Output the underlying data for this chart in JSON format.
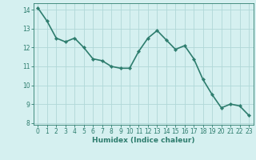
{
  "x": [
    0,
    1,
    2,
    3,
    4,
    5,
    6,
    7,
    8,
    9,
    10,
    11,
    12,
    13,
    14,
    15,
    16,
    17,
    18,
    19,
    20,
    21,
    22,
    23
  ],
  "y": [
    14.1,
    13.4,
    12.5,
    12.3,
    12.5,
    12.0,
    11.4,
    11.3,
    11.0,
    10.9,
    10.9,
    11.8,
    12.5,
    12.9,
    12.4,
    11.9,
    12.1,
    11.4,
    10.3,
    9.5,
    8.8,
    9.0,
    8.9,
    8.4
  ],
  "line_color": "#2e7d6e",
  "marker": "D",
  "marker_size": 2.2,
  "bg_color": "#d5f0f0",
  "grid_color": "#b0d8d8",
  "xlabel": "Humidex (Indice chaleur)",
  "ylim": [
    7.9,
    14.35
  ],
  "xlim": [
    -0.5,
    23.5
  ],
  "yticks": [
    8,
    9,
    10,
    11,
    12,
    13,
    14
  ],
  "xticks": [
    0,
    1,
    2,
    3,
    4,
    5,
    6,
    7,
    8,
    9,
    10,
    11,
    12,
    13,
    14,
    15,
    16,
    17,
    18,
    19,
    20,
    21,
    22,
    23
  ],
  "tick_color": "#2e7d6e",
  "label_color": "#2e7d6e",
  "font_size_xlabel": 6.5,
  "font_size_ticks": 5.5,
  "line_width": 1.2
}
